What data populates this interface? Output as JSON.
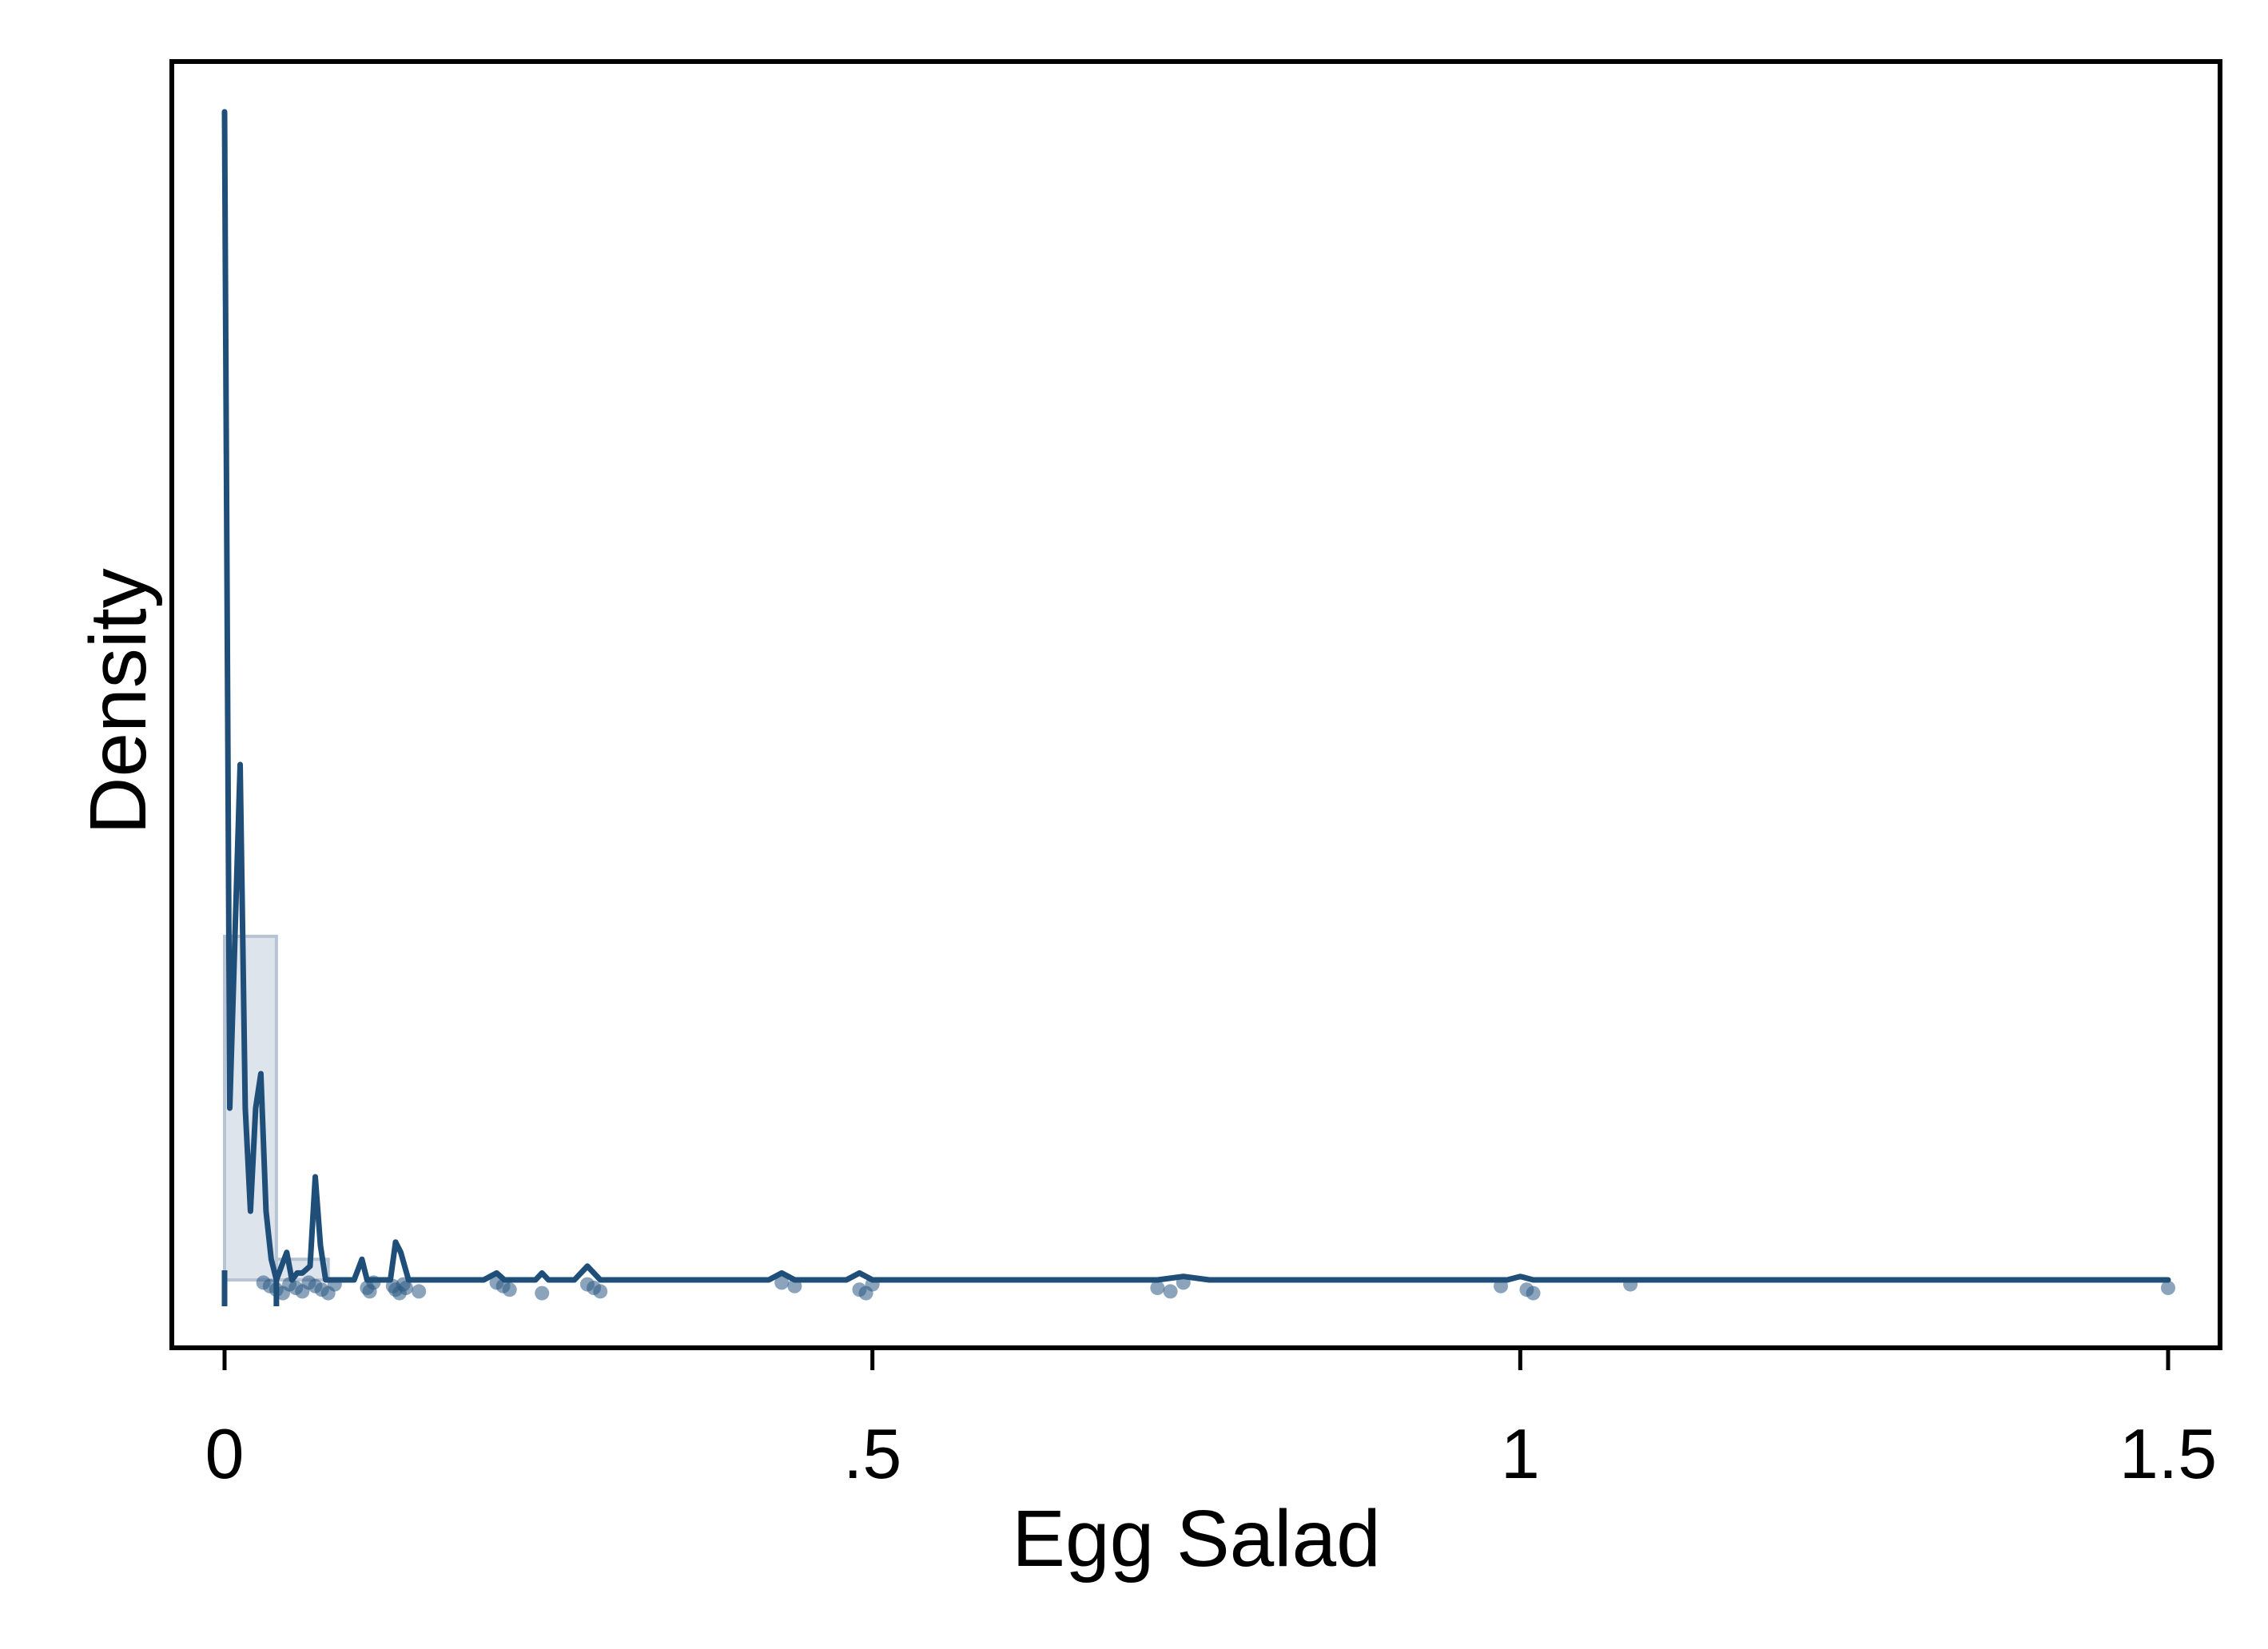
{
  "chart_data": {
    "type": "histogram_density",
    "title": "",
    "xlabel": "Egg Salad",
    "ylabel": "Density",
    "xlim": [
      -0.04,
      1.54
    ],
    "ylim": [
      -0.5,
      17.6
    ],
    "x_ticks": [
      0,
      0.5,
      1,
      1.5
    ],
    "x_tick_labels": [
      "0",
      ".5",
      "1",
      "1.5"
    ],
    "y_ticks_shown": false,
    "colors": {
      "line": "#1f4e79",
      "bar_fill": "#dde4ec",
      "bar_stroke": "#b7c4d3",
      "points": "#2b5a84",
      "frame": "#000000"
    },
    "histogram_bins": [
      {
        "start": 0.0,
        "end": 0.04,
        "density": 5.0
      },
      {
        "start": 0.04,
        "end": 0.08,
        "density": 0.3
      }
    ],
    "kde_line": {
      "x": [
        0.0,
        0.004,
        0.008,
        0.012,
        0.016,
        0.02,
        0.024,
        0.028,
        0.032,
        0.036,
        0.04,
        0.044,
        0.048,
        0.052,
        0.056,
        0.06,
        0.066,
        0.07,
        0.074,
        0.078,
        0.082,
        0.086,
        0.1,
        0.106,
        0.11,
        0.114,
        0.12,
        0.128,
        0.132,
        0.136,
        0.142,
        0.148,
        0.2,
        0.21,
        0.216,
        0.24,
        0.245,
        0.25,
        0.27,
        0.28,
        0.29,
        0.42,
        0.43,
        0.44,
        0.48,
        0.49,
        0.5,
        0.72,
        0.74,
        0.76,
        0.99,
        1.0,
        1.01,
        1.5
      ],
      "y": [
        17.0,
        2.5,
        5.0,
        7.5,
        2.5,
        1.0,
        2.5,
        3.0,
        1.0,
        0.3,
        0.0,
        0.2,
        0.4,
        0.0,
        0.1,
        0.1,
        0.2,
        1.5,
        0.5,
        0.0,
        0.0,
        0.0,
        0.0,
        0.3,
        0.0,
        0.0,
        0.0,
        0.0,
        0.55,
        0.4,
        0.0,
        0.0,
        0.0,
        0.1,
        0.0,
        0.0,
        0.1,
        0.0,
        0.0,
        0.2,
        0.0,
        0.0,
        0.1,
        0.0,
        0.0,
        0.1,
        0.0,
        0.0,
        0.05,
        0.0,
        0.0,
        0.05,
        0.0,
        0.0
      ]
    },
    "jittered_points_x": [
      0.03,
      0.035,
      0.04,
      0.045,
      0.05,
      0.055,
      0.06,
      0.065,
      0.07,
      0.075,
      0.08,
      0.085,
      0.11,
      0.112,
      0.115,
      0.13,
      0.132,
      0.135,
      0.138,
      0.14,
      0.15,
      0.21,
      0.215,
      0.22,
      0.245,
      0.28,
      0.285,
      0.29,
      0.43,
      0.44,
      0.49,
      0.495,
      0.5,
      0.72,
      0.73,
      0.74,
      0.985,
      1.005,
      1.01,
      1.085,
      1.5
    ]
  }
}
